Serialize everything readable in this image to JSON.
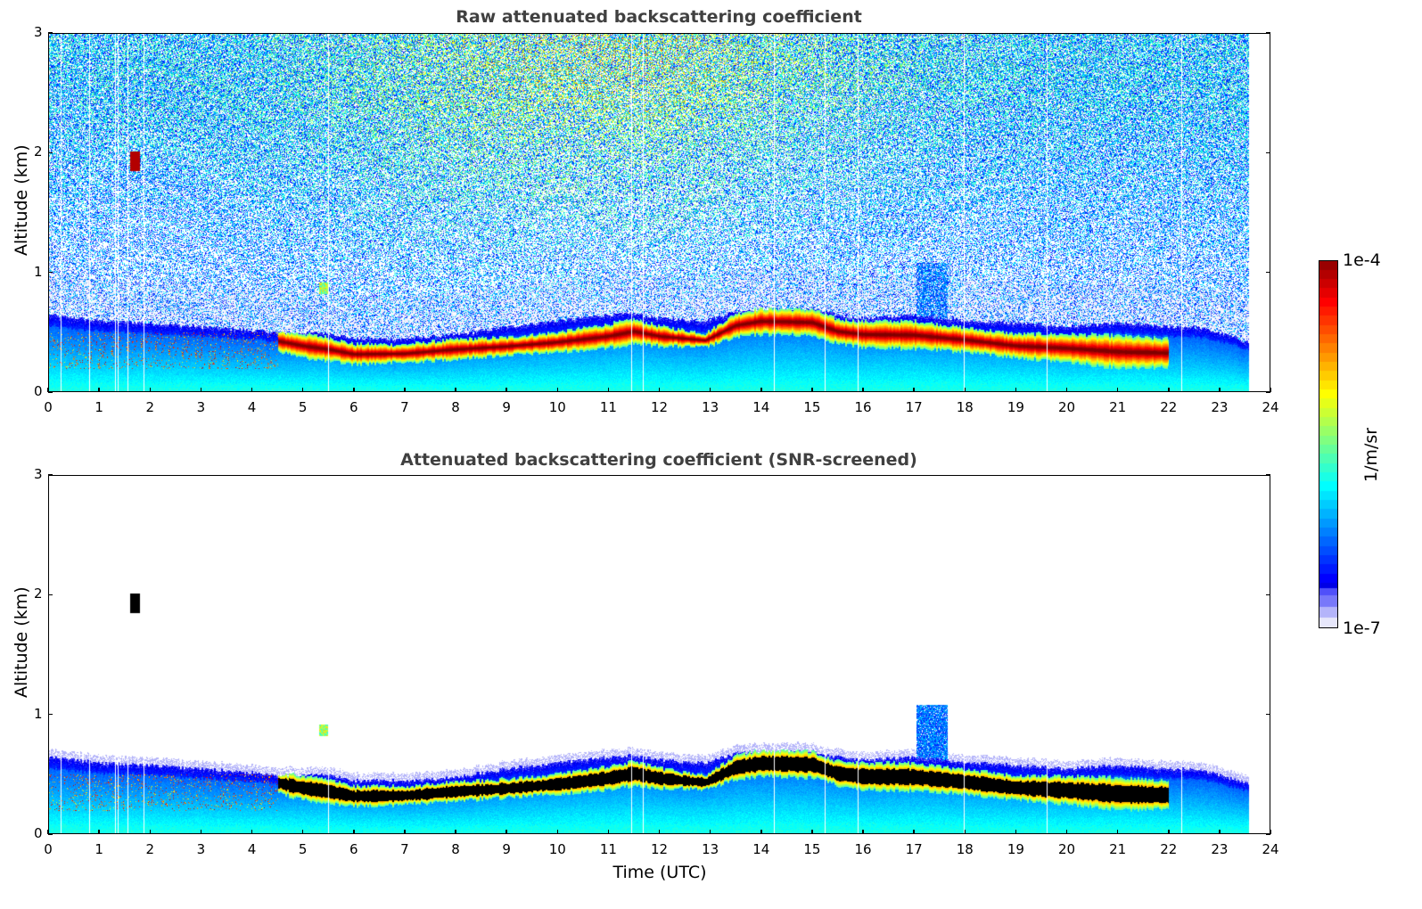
{
  "chart_data": [
    {
      "type": "heatmap",
      "title": "Raw attenuated backscattering coefficient",
      "xlabel": "",
      "ylabel": "Altitude (km)",
      "xlim": [
        0,
        24
      ],
      "ylim": [
        0,
        3
      ],
      "x_ticks": [
        "0",
        "1",
        "2",
        "3",
        "4",
        "5",
        "6",
        "7",
        "8",
        "9",
        "10",
        "11",
        "12",
        "13",
        "14",
        "15",
        "16",
        "17",
        "18",
        "19",
        "20",
        "21",
        "22",
        "23",
        "24"
      ],
      "y_ticks": [
        "0",
        "1",
        "2",
        "3"
      ],
      "data_end_hour": 23.58,
      "screened": false
    },
    {
      "type": "heatmap",
      "title": "Attenuated backscattering coefficient (SNR-screened)",
      "xlabel": "Time (UTC)",
      "ylabel": "Altitude (km)",
      "xlim": [
        0,
        24
      ],
      "ylim": [
        0,
        3
      ],
      "x_ticks": [
        "0",
        "1",
        "2",
        "3",
        "4",
        "5",
        "6",
        "7",
        "8",
        "9",
        "10",
        "11",
        "12",
        "13",
        "14",
        "15",
        "16",
        "17",
        "18",
        "19",
        "20",
        "21",
        "22",
        "23",
        "24"
      ],
      "y_ticks": [
        "0",
        "1",
        "2",
        "3"
      ],
      "data_end_hour": 23.58,
      "screened": true
    }
  ],
  "layer_profile": {
    "hours": [
      0,
      1,
      2,
      3,
      4,
      4.5,
      5,
      5.5,
      6,
      7,
      8,
      9,
      10,
      11,
      11.5,
      12,
      12.9,
      13.5,
      14,
      15,
      15.5,
      16,
      17,
      18,
      19,
      20,
      21,
      22,
      22.5,
      23,
      23.58
    ],
    "aerosol_top_km": [
      0.65,
      0.6,
      0.58,
      0.55,
      0.52,
      0.5,
      0.5,
      0.5,
      0.45,
      0.45,
      0.48,
      0.55,
      0.6,
      0.65,
      0.66,
      0.62,
      0.6,
      0.68,
      0.7,
      0.7,
      0.65,
      0.62,
      0.65,
      0.6,
      0.58,
      0.55,
      0.58,
      0.55,
      0.55,
      0.5,
      0.42
    ],
    "layer_top_km": [
      null,
      null,
      null,
      null,
      null,
      0.48,
      0.45,
      0.42,
      0.37,
      0.37,
      0.41,
      0.43,
      0.47,
      0.53,
      0.57,
      0.52,
      0.47,
      0.62,
      0.66,
      0.65,
      0.57,
      0.55,
      0.55,
      0.5,
      0.45,
      0.44,
      0.42,
      0.4,
      null,
      null,
      null
    ],
    "layer_bot_km": [
      null,
      null,
      null,
      null,
      null,
      0.38,
      0.33,
      0.3,
      0.27,
      0.28,
      0.31,
      0.34,
      0.37,
      0.41,
      0.45,
      0.42,
      0.4,
      0.5,
      0.53,
      0.52,
      0.45,
      0.42,
      0.41,
      0.38,
      0.33,
      0.3,
      0.26,
      0.26,
      null,
      null,
      null
    ]
  },
  "cloud_features": [
    {
      "hour": 1.7,
      "alt_km": 1.93,
      "kind": "thick"
    },
    {
      "hour": 5.4,
      "alt_km": 0.87,
      "kind": "thin"
    },
    {
      "hour": 17.35,
      "alt_km": 0.95,
      "kind": "plume"
    }
  ],
  "data_gaps_hours": [
    0.25,
    0.8,
    1.32,
    1.37,
    1.55,
    1.88,
    5.5,
    11.45,
    11.67,
    14.25,
    15.25,
    15.9,
    17.98,
    19.6,
    22.25
  ],
  "colorbar": {
    "max_label": "1e-4",
    "min_label": "1e-7",
    "unit_label": "1/m/sr",
    "colormap": "jet",
    "vmin": 1e-07,
    "vmax": 0.0001,
    "scale": "log"
  }
}
